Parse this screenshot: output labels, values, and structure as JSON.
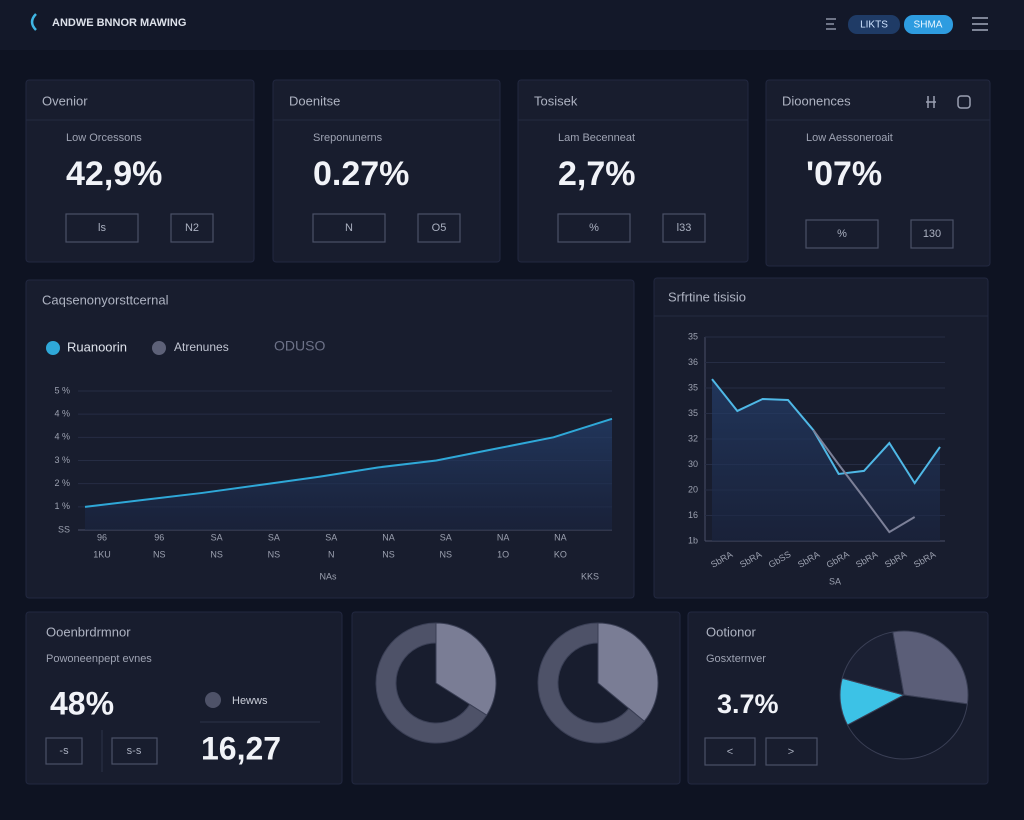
{
  "header": {
    "title": "ANDWE BNNOR MAWING",
    "buttons": [
      "LIKTS",
      "SHMA"
    ]
  },
  "cards": [
    {
      "title": "Ovenior",
      "subtitle": "Low Orcessons",
      "value": "42,9%",
      "buttons": [
        "ls",
        "N2"
      ]
    },
    {
      "title": "Doenitse",
      "subtitle": "Sreponunerns",
      "value": "0.27%",
      "buttons": [
        "N",
        "O5"
      ]
    },
    {
      "title": "Tosisek",
      "subtitle": "Lam Becenneat",
      "value": "2,7%",
      "buttons": [
        "%",
        "l33"
      ]
    },
    {
      "title": "Dioonences",
      "subtitle": "Low Aessoneroait",
      "value": "'07%",
      "buttons": [
        "%",
        "130"
      ]
    }
  ],
  "line_chart": {
    "type": "line",
    "title": "Caqsenonyorsttcernal",
    "series": [
      {
        "name": "Ruanoorin",
        "color": "#2fa8d8",
        "values": [
          1.0,
          1.3,
          1.6,
          1.95,
          2.3,
          2.7,
          3.0,
          3.5,
          4.0,
          4.8
        ]
      }
    ],
    "other_legend": {
      "name": "Atrenunes",
      "color": "#5d6178"
    },
    "legend_note": "ODUSO",
    "ylim": [
      0,
      6
    ],
    "yticks": [
      {
        "value": 0,
        "label": "SS"
      },
      {
        "value": 1,
        "label": "1 %"
      },
      {
        "value": 2,
        "label": "2 %"
      },
      {
        "value": 3,
        "label": "3 %"
      },
      {
        "value": 4,
        "label": "4 %"
      },
      {
        "value": 5,
        "label": "4 %"
      },
      {
        "value": 6,
        "label": "5 %"
      }
    ],
    "x_labels_top": [
      "96",
      "96",
      "SA",
      "SA",
      "SA",
      "NA",
      "SA",
      "NA",
      "NA"
    ],
    "x_labels_bottom": [
      "1KU",
      "NS",
      "NS",
      "NS",
      "N",
      "NS",
      "NS",
      "1O",
      "KO"
    ],
    "x_axis_labels": [
      "NAs",
      "KKS"
    ]
  },
  "side_chart": {
    "type": "line",
    "title": "Srfrtine tisisio",
    "series": [
      {
        "color": "#4fb8e6",
        "values": [
          6.35,
          5.1,
          5.57,
          5.53,
          4.35,
          2.63,
          2.75,
          3.84,
          2.27,
          3.69
        ]
      },
      {
        "color": "#7c8098",
        "values": [
          null,
          null,
          null,
          null,
          4.35,
          3.0,
          1.69,
          0.35,
          0.94,
          null
        ]
      }
    ],
    "ylim": [
      0,
      8
    ],
    "yticks": [
      {
        "value": 0,
        "label": "1b"
      },
      {
        "value": 1,
        "label": "16"
      },
      {
        "value": 2,
        "label": "20"
      },
      {
        "value": 3,
        "label": "30"
      },
      {
        "value": 4,
        "label": "32"
      },
      {
        "value": 5,
        "label": "35"
      },
      {
        "value": 6,
        "label": "35"
      },
      {
        "value": 7,
        "label": "36"
      },
      {
        "value": 8,
        "label": "35"
      }
    ],
    "x_labels": [
      "SbRA",
      "SbRA",
      "GbSS",
      "SbRA",
      "GbRA",
      "SbRA",
      "SbRA",
      "SbRA"
    ],
    "x_axis_label": "SA"
  },
  "bottom_left": {
    "title": "Ooenbrdrmnor",
    "subtitle": "Powoneenpept evnes",
    "value": "48%",
    "legend": "Hewws",
    "value2": "16,27",
    "buttons": [
      "-s",
      "s-s"
    ]
  },
  "donuts": [
    {
      "type": "pie",
      "values": [
        34,
        66
      ],
      "colors": [
        "#7a7d95",
        "#4e5268"
      ]
    },
    {
      "type": "pie",
      "values": [
        36,
        64
      ],
      "colors": [
        "#7a7d95",
        "#4e5268"
      ]
    }
  ],
  "bottom_right": {
    "title": "Ootionor",
    "subtitle": "Gosxternver",
    "value": "3.7%",
    "buttons": [
      "<",
      ">"
    ],
    "pie": {
      "type": "pie",
      "values": [
        12,
        18,
        30,
        40
      ],
      "colors": [
        "#3cc2e6",
        "#1b2033",
        "#5b5e78",
        "#141a2b"
      ]
    }
  }
}
